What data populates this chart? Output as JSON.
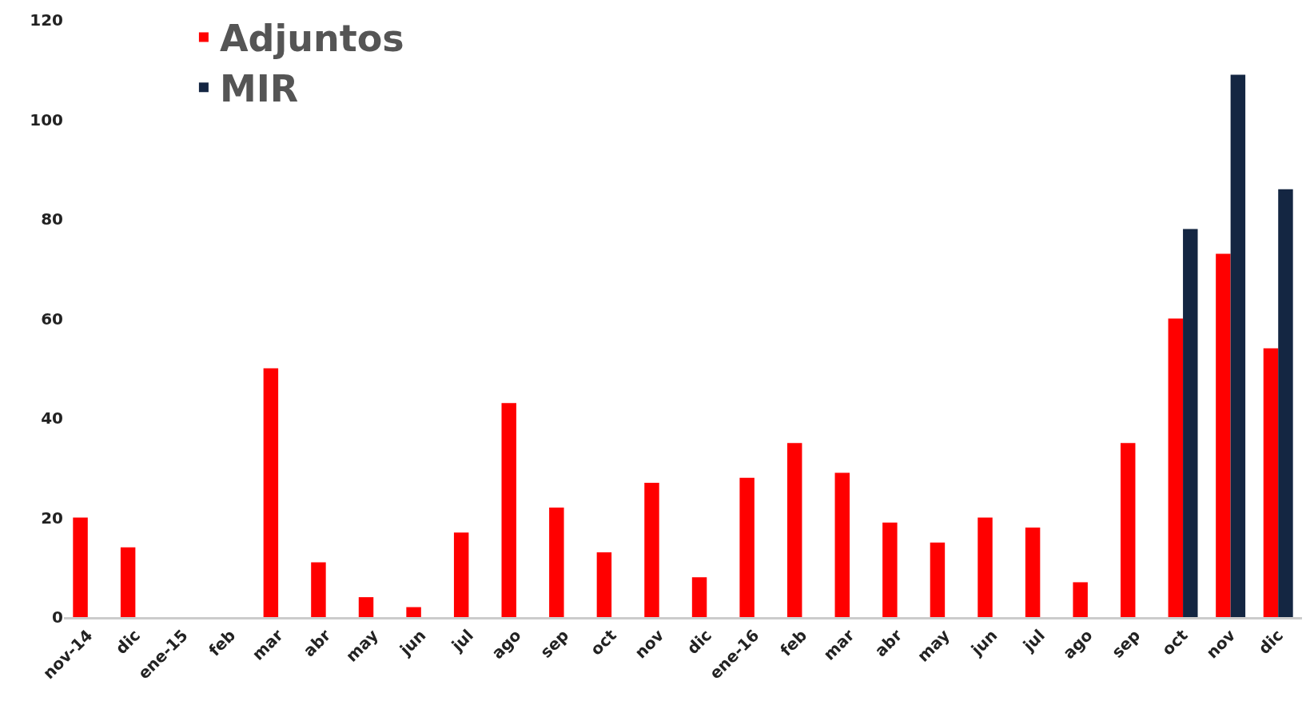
{
  "chart_data": {
    "type": "bar",
    "categories": [
      "nov-14",
      "dic",
      "ene-15",
      "feb",
      "mar",
      "abr",
      "may",
      "jun",
      "jul",
      "ago",
      "sep",
      "oct",
      "nov",
      "dic",
      "ene-16",
      "feb",
      "mar",
      "abr",
      "may",
      "jun",
      "jul",
      "ago",
      "sep",
      "oct",
      "nov",
      "dic"
    ],
    "series": [
      {
        "name": "Adjuntos",
        "color": "#ff0000",
        "values": [
          20,
          14,
          null,
          null,
          50,
          11,
          4,
          2,
          17,
          43,
          22,
          13,
          27,
          8,
          28,
          35,
          29,
          19,
          15,
          20,
          18,
          7,
          35,
          60,
          73,
          54
        ]
      },
      {
        "name": "MIR",
        "color": "#142642",
        "values": [
          null,
          null,
          null,
          null,
          null,
          null,
          null,
          null,
          null,
          null,
          null,
          null,
          null,
          null,
          null,
          null,
          null,
          null,
          null,
          null,
          null,
          null,
          null,
          78,
          109,
          86
        ]
      }
    ],
    "ylim": [
      0,
      120
    ],
    "yticks": [
      0,
      20,
      40,
      60,
      80,
      100,
      120
    ],
    "legend": "top left"
  }
}
